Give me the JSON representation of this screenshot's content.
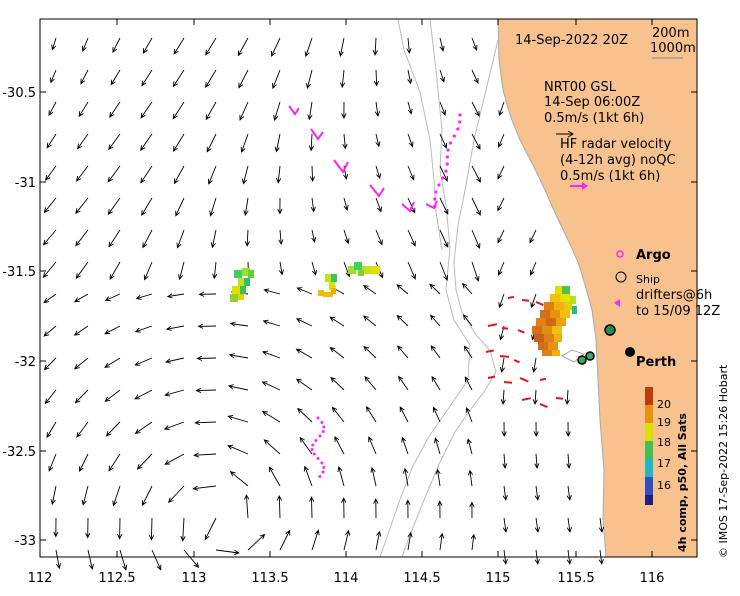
{
  "map": {
    "date_label": "14-Sep-2022 20Z",
    "isobath_labels": [
      "200m",
      "1000m"
    ],
    "nrt_lines": [
      "NRT00 GSL",
      "14-Sep 06:00Z",
      "0.5m/s (1kt 6h)"
    ],
    "hf_lines": [
      "HF radar velocity",
      "(4-12h avg) noQC",
      "0.5m/s (1kt 6h)"
    ],
    "legend": {
      "argo": "Argo",
      "ship": "Ship",
      "drifters_1": "drifters@6h",
      "drifters_2": "to 15/09 12Z"
    },
    "city": "Perth",
    "colorbar": {
      "title": "4h comp, p50, All Sats",
      "ticks": [
        "20",
        "19",
        "18",
        "17",
        "16"
      ]
    },
    "credit": "© IMOS 17-Sep-2022 15:26 Hobart",
    "x_ticks": [
      "112",
      "112.5",
      "113",
      "113.5",
      "114",
      "114.5",
      "115",
      "115.5",
      "116"
    ],
    "y_ticks": [
      "-30.5",
      "-31",
      "-31.5",
      "-32",
      "-32.5",
      "-33"
    ]
  },
  "colors": {
    "land": "#f8c28e",
    "drifter": "#ff22ff",
    "hf": "#e8101c",
    "coast": "#bbbbbb"
  }
}
